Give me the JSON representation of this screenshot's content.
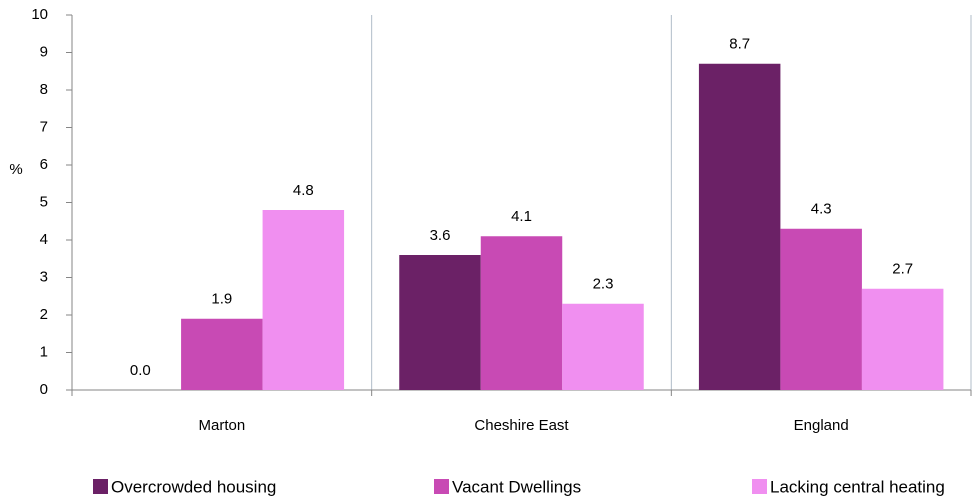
{
  "chart_data": {
    "type": "bar",
    "categories": [
      "Marton",
      "Cheshire East",
      "England"
    ],
    "y_label": "%",
    "series": [
      {
        "name": "Overcrowded housing",
        "color": "#6b2166",
        "values": [
          0,
          3.6,
          8.7
        ],
        "value_labels": [
          "0.0",
          "3.6",
          "8.7"
        ]
      },
      {
        "name": "Vacant Dwellings",
        "color": "#c84ab4",
        "values": [
          1.9,
          4.1,
          4.3
        ],
        "value_labels": [
          "1.9",
          "4.1",
          "4.3"
        ]
      },
      {
        "name": "Lacking central heating",
        "color": "#f08ff0",
        "values": [
          4.8,
          2.3,
          2.7
        ],
        "value_labels": [
          "4.8",
          "2.3",
          "2.7"
        ]
      }
    ],
    "ylim": [
      0,
      10
    ],
    "yticks": [
      0,
      1,
      2,
      3,
      4,
      5,
      6,
      7,
      8,
      9,
      10
    ],
    "legend": "bottom"
  }
}
